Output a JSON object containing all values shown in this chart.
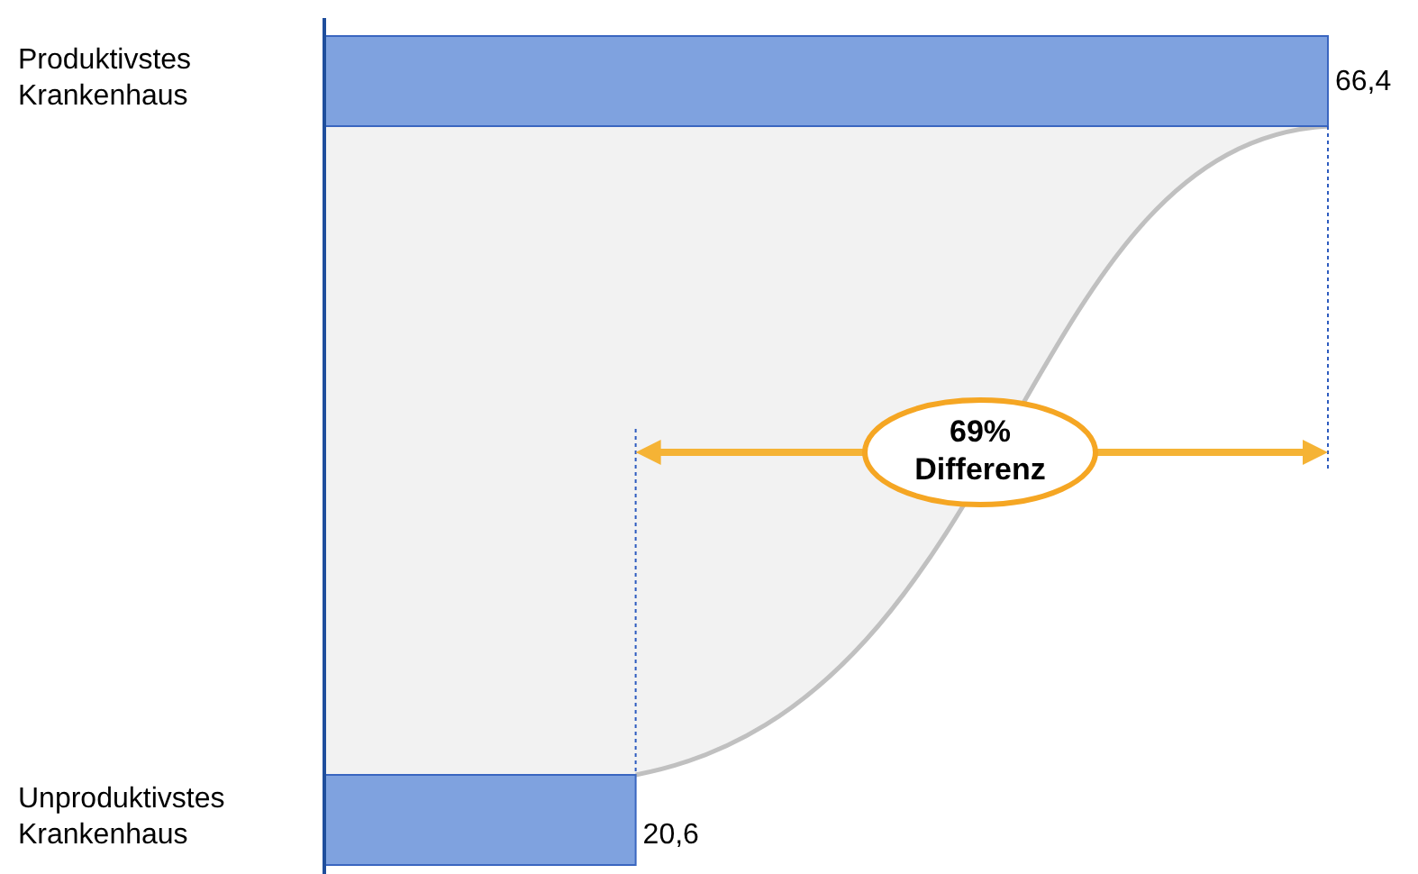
{
  "chart_data": {
    "type": "bar",
    "orientation": "horizontal",
    "categories": [
      "Produktivstes Krankenhaus",
      "Unproduktivstes Krankenhaus"
    ],
    "values": [
      66.4,
      20.6
    ],
    "color": "#7fa2df",
    "data_labels": true,
    "value_labels": [
      "66,4",
      "20,6"
    ],
    "annotations": [
      "69% Differenz"
    ]
  }
}
